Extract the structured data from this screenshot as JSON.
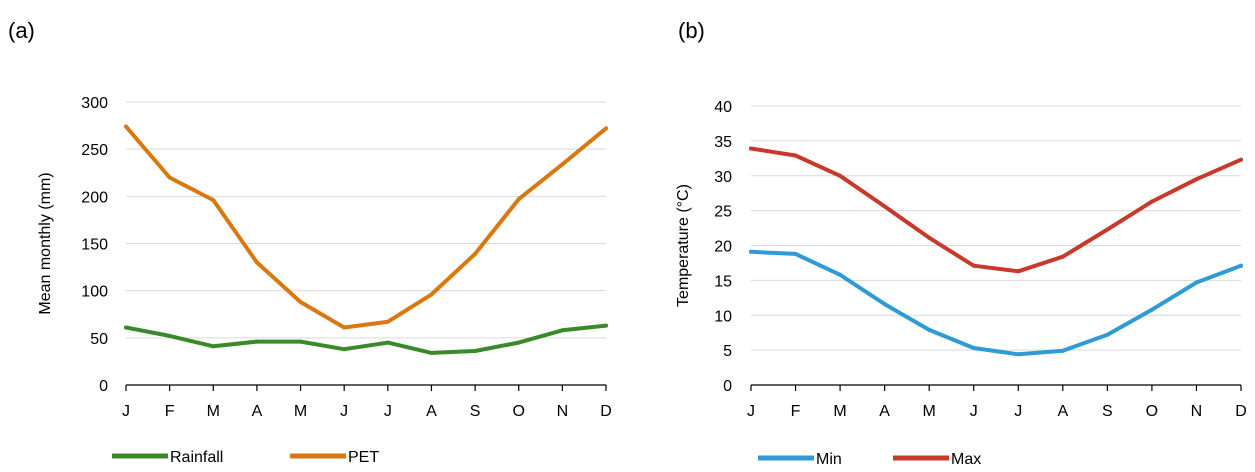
{
  "chart_data": [
    {
      "panel_label": "(a)",
      "type": "line",
      "categories": [
        "J",
        "F",
        "M",
        "A",
        "M",
        "J",
        "J",
        "A",
        "S",
        "O",
        "N",
        "D"
      ],
      "series": [
        {
          "name": "Rainfall",
          "color": "#3a8a2c",
          "values": [
            61,
            52,
            41,
            46,
            46,
            38,
            45,
            34,
            36,
            45,
            58,
            63
          ]
        },
        {
          "name": "PET",
          "color": "#d9780f",
          "values": [
            274,
            220,
            196,
            130,
            88,
            61,
            67,
            96,
            139,
            197,
            234,
            272
          ]
        }
      ],
      "ylabel": "Mean monthly (mm)",
      "xlabel": "",
      "ylim": [
        0,
        300
      ],
      "yticks": [
        0,
        50,
        100,
        150,
        200,
        250,
        300
      ],
      "grid": true,
      "legend_position": "bottom"
    },
    {
      "panel_label": "(b)",
      "type": "line",
      "categories": [
        "J",
        "F",
        "M",
        "A",
        "M",
        "J",
        "J",
        "A",
        "S",
        "O",
        "N",
        "D"
      ],
      "series": [
        {
          "name": "Min",
          "color": "#2e9ad6",
          "values": [
            19.1,
            18.8,
            15.8,
            11.6,
            7.9,
            5.3,
            4.4,
            4.9,
            7.2,
            10.8,
            14.7,
            17.1
          ]
        },
        {
          "name": "Max",
          "color": "#c8382b",
          "values": [
            33.9,
            32.9,
            30.0,
            25.6,
            21.1,
            17.1,
            16.3,
            18.4,
            22.3,
            26.3,
            29.5,
            32.3
          ]
        }
      ],
      "ylabel": "Temperature (°C)",
      "xlabel": "",
      "ylim": [
        0,
        40
      ],
      "yticks": [
        0,
        5,
        10,
        15,
        20,
        25,
        30,
        35,
        40
      ],
      "grid": true,
      "legend_position": "bottom"
    }
  ]
}
